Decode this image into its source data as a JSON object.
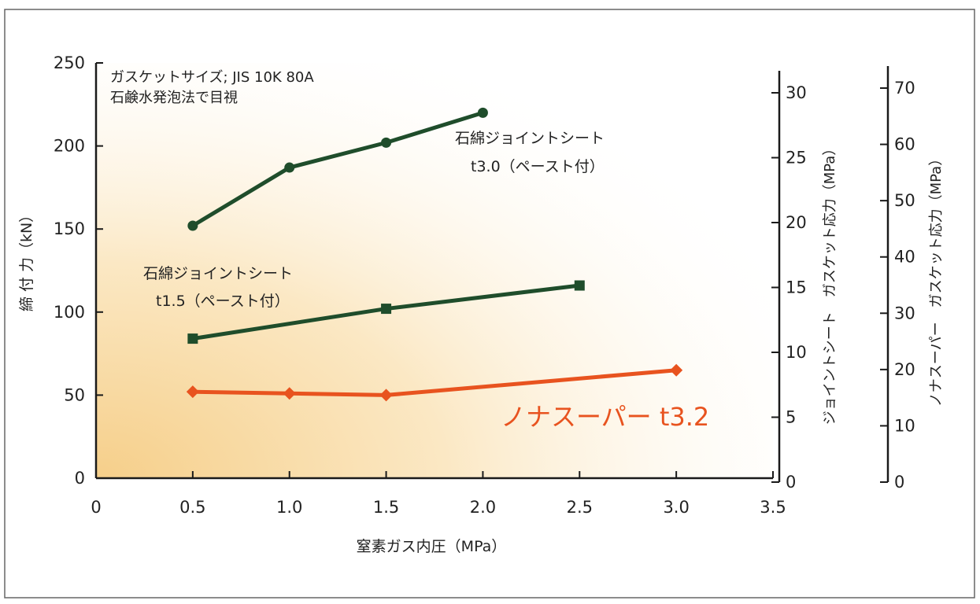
{
  "chart_data": {
    "type": "line",
    "note_lines": [
      "ガスケットサイズ; JIS 10K 80A",
      "石鹸水発泡法で目視"
    ],
    "xlabel": "窒素ガス内圧（MPa）",
    "ylabel": "締 付 力（kN）",
    "xlim": [
      0,
      3.5
    ],
    "ylim": [
      0,
      250
    ],
    "x_ticks": [
      "0",
      "0.5",
      "1.0",
      "1.5",
      "2.0",
      "2.5",
      "3.0",
      "3.5"
    ],
    "y_ticks": [
      "0",
      "50",
      "100",
      "150",
      "200",
      "250"
    ],
    "right_axes": [
      {
        "label": "ジョイントシート　ガスケット応力（MPa）",
        "lim": [
          0,
          30
        ],
        "ticks": [
          "0",
          "5",
          "10",
          "15",
          "20",
          "25",
          "30"
        ]
      },
      {
        "label": "ノナスーパー　ガスケット応力（MPa）",
        "lim": [
          0,
          70
        ],
        "ticks": [
          "0",
          "10",
          "20",
          "30",
          "40",
          "50",
          "60",
          "70"
        ]
      }
    ],
    "series": [
      {
        "name_lines": [
          "石綿ジョイントシート",
          "t3.0（ペースト付）"
        ],
        "marker": "circle",
        "color": "#1f4d2b",
        "x": [
          0.5,
          1.0,
          1.5,
          2.0
        ],
        "y": [
          152,
          187,
          202,
          220
        ]
      },
      {
        "name_lines": [
          "石綿ジョイントシート",
          "t1.5（ペースト付）"
        ],
        "marker": "square",
        "color": "#1f4d2b",
        "x": [
          0.5,
          1.5,
          2.5
        ],
        "y": [
          84,
          102,
          116
        ]
      },
      {
        "name_lines": [
          "ノナスーパー t3.2"
        ],
        "marker": "diamond",
        "color": "#e8531f",
        "x": [
          0.5,
          1.0,
          1.5,
          3.0
        ],
        "y": [
          52,
          51,
          50,
          65
        ]
      }
    ]
  }
}
